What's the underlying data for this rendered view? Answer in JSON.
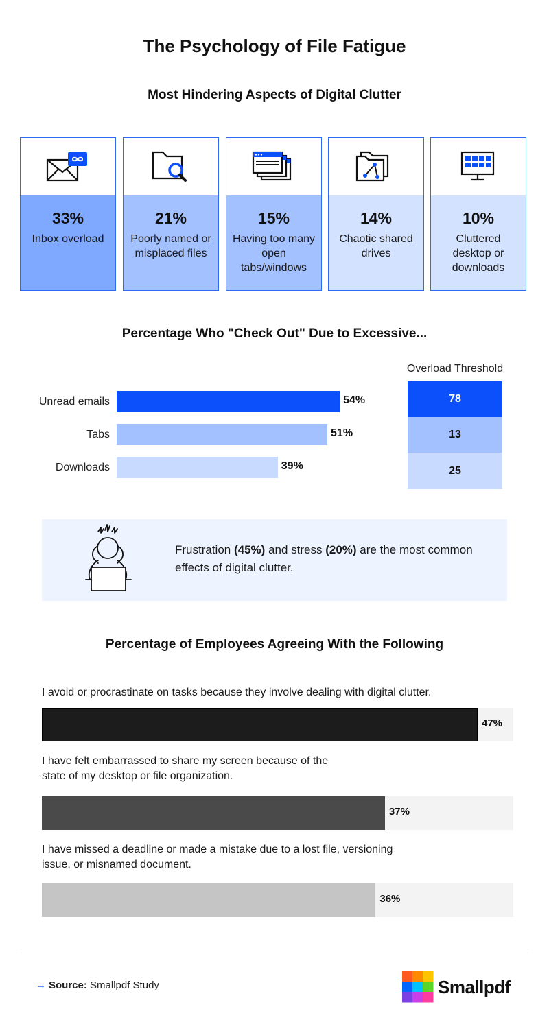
{
  "title": "The Psychology of File Fatigue",
  "section1": {
    "title": "Most Hindering Aspects of Digital Clutter",
    "cards": [
      {
        "pct": "33%",
        "label": "Inbox overload",
        "value": 33,
        "color": "#7fa8ff",
        "icon": "mail-infinity-icon"
      },
      {
        "pct": "21%",
        "label": "Poorly named or misplaced files",
        "value": 21,
        "color": "#a3c0ff",
        "icon": "folder-search-icon"
      },
      {
        "pct": "15%",
        "label": "Having too many open tabs/windows",
        "value": 15,
        "color": "#a3c0ff",
        "icon": "stacked-windows-icon"
      },
      {
        "pct": "14%",
        "label": "Chaotic shared drives",
        "value": 14,
        "color": "#d3e2ff",
        "icon": "shared-folder-icon"
      },
      {
        "pct": "10%",
        "label": "Cluttered desktop or downloads",
        "value": 10,
        "color": "#d3e2ff",
        "icon": "desktop-grid-icon"
      }
    ]
  },
  "section2": {
    "title": "Percentage Who \"Check Out\" Due to Excessive...",
    "threshold_title": "Overload Threshold"
  },
  "callout": {
    "icon": "stressed-person-laptop-icon",
    "text_a": "Frustration ",
    "bold_a": "(45%)",
    "text_b": " and stress ",
    "bold_b": "(20%)",
    "text_c": " are the most common effects of digital clutter."
  },
  "section3": {
    "title": "Percentage of Employees Agreeing With the Following"
  },
  "chart_data": [
    {
      "type": "bar",
      "orientation": "horizontal",
      "categories": [
        "Unread emails",
        "Tabs",
        "Downloads"
      ],
      "values": [
        54,
        51,
        39
      ],
      "value_labels": [
        "54%",
        "51%",
        "39%"
      ],
      "colors": [
        "#0b50fa",
        "#a3c0ff",
        "#c8daff"
      ],
      "xlim": [
        0,
        100
      ],
      "threshold_values": [
        "78",
        "13",
        "25"
      ],
      "threshold_colors": [
        "#0b50fa",
        "#a3c0ff",
        "#c8daff"
      ]
    },
    {
      "type": "bar",
      "orientation": "horizontal",
      "categories": [
        "I avoid or procrastinate on tasks because they involve dealing with digital clutter.",
        "I have felt embarrassed to share my screen because of the state of my desktop or file organization.",
        "I have missed a deadline or made a mistake due to a lost file, versioning issue, or misnamed document."
      ],
      "values": [
        47,
        37,
        36
      ],
      "value_labels": [
        "47%",
        "37%",
        "36%"
      ],
      "colors": [
        "#1c1c1c",
        "#4a4a4a",
        "#c5c5c5"
      ],
      "xlim": [
        0,
        50
      ]
    }
  ],
  "footer": {
    "arrow": "→",
    "source_label": "Source:",
    "source_value": " Smallpdf Study",
    "logo_text": "Smallpdf",
    "logo_colors": [
      "#ff5a1f",
      "#ff8a00",
      "#ffc400",
      "#0066ff",
      "#00c2ff",
      "#5ad62b",
      "#7b3fe4",
      "#c93ee8",
      "#ff3aa0"
    ]
  }
}
